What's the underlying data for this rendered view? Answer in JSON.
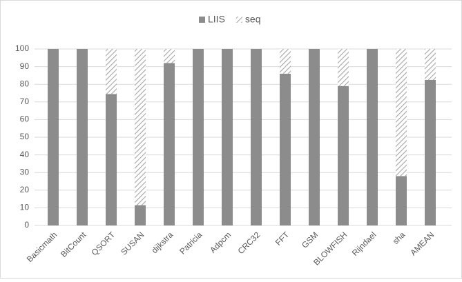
{
  "chart_data": {
    "type": "stacked_bar",
    "categories": [
      "Basicmath",
      "BitCount",
      "QSORT",
      "SUSAN",
      "dijkstra",
      "Patricia",
      "Adpcm",
      "CRC32",
      "FFT",
      "GSM",
      "BLOWFISH",
      "Rijndael",
      "sha",
      "AMEAN"
    ],
    "series": [
      {
        "name": "LIIS",
        "color": "#8c8c8c",
        "values": [
          100,
          100,
          74.5,
          11.5,
          92,
          100,
          100,
          100,
          86,
          100,
          79,
          100,
          28,
          82.5
        ]
      },
      {
        "name": "seq",
        "color": "#a5a5a5",
        "pattern": "hatch",
        "values": [
          0,
          0,
          25.5,
          88.5,
          8,
          0,
          0,
          0,
          14,
          0,
          21,
          0,
          72,
          17.5
        ]
      }
    ],
    "ylim": [
      0,
      100
    ],
    "yticks": [
      0,
      10,
      20,
      30,
      40,
      50,
      60,
      70,
      80,
      90,
      100
    ],
    "grid": true,
    "legend": "top"
  }
}
